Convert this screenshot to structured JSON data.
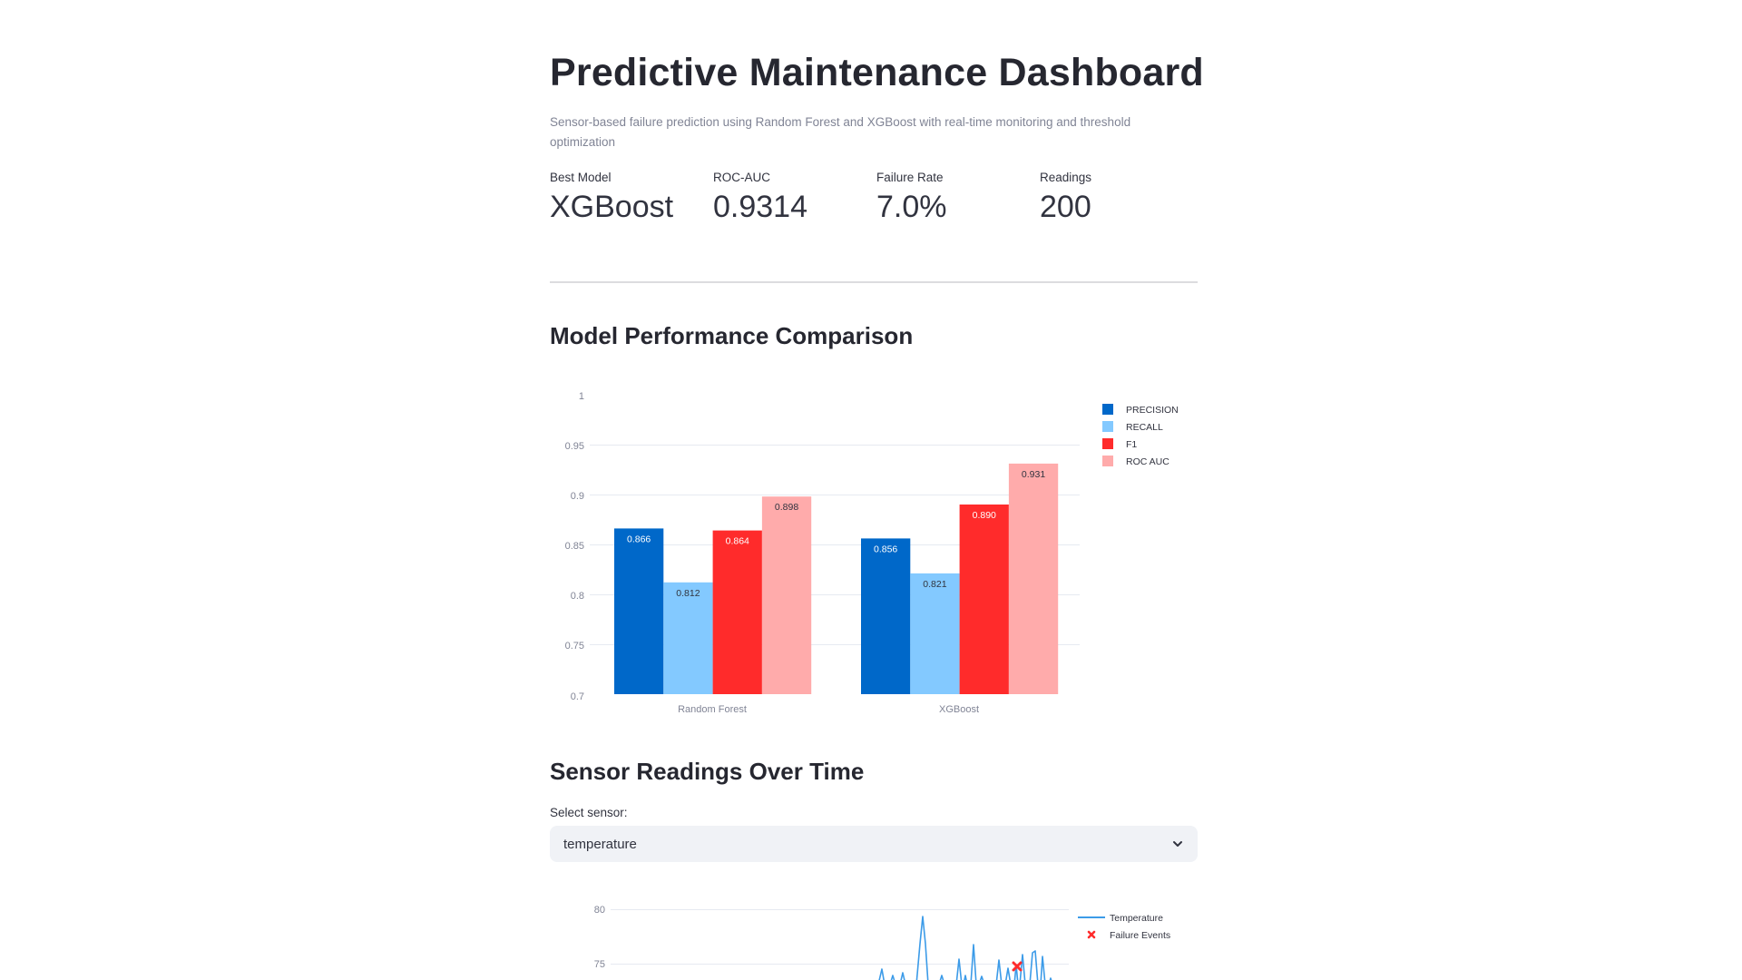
{
  "header": {
    "title": "Predictive Maintenance Dashboard",
    "subtitle": "Sensor-based failure prediction using Random Forest and XGBoost with real-time monitoring and threshold optimization"
  },
  "metrics": [
    {
      "label": "Best Model",
      "value": "XGBoost"
    },
    {
      "label": "ROC-AUC",
      "value": "0.9314"
    },
    {
      "label": "Failure Rate",
      "value": "7.0%"
    },
    {
      "label": "Readings",
      "value": "200"
    }
  ],
  "sections": {
    "model_performance": "Model Performance Comparison",
    "sensor_readings": "Sensor Readings Over Time"
  },
  "sensor_select": {
    "label": "Select sensor:",
    "value": "temperature",
    "icon": "chevron-down-icon"
  },
  "colors": {
    "precision": "#0068c9",
    "recall": "#83c9ff",
    "f1": "#ff2b2b",
    "roc_auc": "#ffabab",
    "temperature_line": "#3c9be8",
    "failure_marker": "#ff2b2b",
    "grid": "#e6eaf1",
    "axis_text": "#808495"
  },
  "chart_data": [
    {
      "type": "bar",
      "title": "Model Performance Comparison",
      "categories": [
        "Random Forest",
        "XGBoost"
      ],
      "series": [
        {
          "name": "PRECISION",
          "values": [
            0.866,
            0.856
          ]
        },
        {
          "name": "RECALL",
          "values": [
            0.812,
            0.821
          ]
        },
        {
          "name": "F1",
          "values": [
            0.864,
            0.89
          ]
        },
        {
          "name": "ROC AUC",
          "values": [
            0.898,
            0.931
          ]
        }
      ],
      "data_labels": [
        [
          "0.866",
          "0.812",
          "0.864",
          "0.898"
        ],
        [
          "0.856",
          "0.821",
          "0.890",
          "0.931"
        ]
      ],
      "xlabel": "",
      "ylabel": "",
      "ylim": [
        0.7,
        1.0
      ],
      "yticks": [
        "0.7",
        "0.75",
        "0.8",
        "0.85",
        "0.9",
        "0.95",
        "1"
      ],
      "grid": true,
      "legend_position": "right"
    },
    {
      "type": "line",
      "title": "Sensor Readings Over Time",
      "series": [
        {
          "name": "Temperature",
          "mode": "line"
        },
        {
          "name": "Failure Events",
          "mode": "markers",
          "marker": "x",
          "points": [
            {
              "x_frac": 0.9,
              "y": 74.6
            }
          ]
        }
      ],
      "peaks_visible": [
        74.2,
        73.6,
        73.9,
        79.0,
        73.2,
        75.8,
        77.3,
        75.9,
        75.2,
        76.0,
        76.7,
        76.1,
        73.5
      ],
      "yticks_visible": [
        "75",
        "80"
      ],
      "grid": true,
      "legend_position": "right"
    }
  ]
}
